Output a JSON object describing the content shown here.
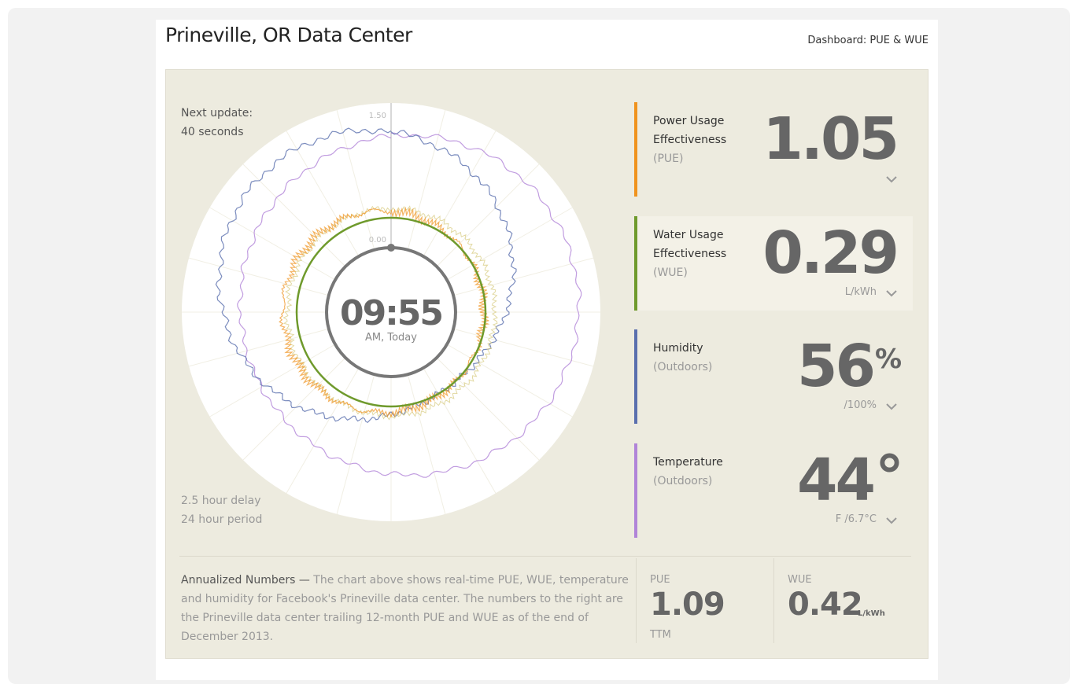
{
  "header": {
    "title": "Prineville, OR Data Center",
    "link": "Dashboard: PUE & WUE"
  },
  "status": {
    "next_update_label": "Next update:",
    "next_update_value": "40 seconds",
    "delay": "2.5 hour delay",
    "period": "24 hour period"
  },
  "dial": {
    "outer_label": "1.50",
    "inner_label": "0.00",
    "time": "09:55",
    "time_label": "AM, Today"
  },
  "metrics": [
    {
      "name": [
        "Power Usage",
        "Effectiveness"
      ],
      "sub": "(PUE)",
      "value": "1.05",
      "color": "#f0931e"
    },
    {
      "name": [
        "Water Usage",
        "Effectiveness"
      ],
      "sub": "(WUE)",
      "value": "0.29",
      "unit": "L/kWh",
      "color": "#6f9a2c"
    },
    {
      "name": [
        "Humidity"
      ],
      "sub": "(Outdoors)",
      "value": "56",
      "sup": "%",
      "unit": "/100%",
      "color": "#5a6fae"
    },
    {
      "name": [
        "Temperature"
      ],
      "sub": "(Outdoors)",
      "value": "44",
      "sup": "°",
      "unit": "F /6.7°C",
      "color": "#b184d8"
    }
  ],
  "annual": {
    "heading": "Annualized Numbers —",
    "text": "The chart above shows real-time PUE, WUE, temperature and humidity for Facebook's Prineville data center. The numbers to the right are the Prineville data center trailing 12-month PUE and WUE as of the end of December 2013.",
    "pue": {
      "label": "PUE",
      "value": "1.09",
      "note": "TTM"
    },
    "wue": {
      "label": "WUE",
      "value": "0.42",
      "unit": "L/kWh"
    }
  }
}
